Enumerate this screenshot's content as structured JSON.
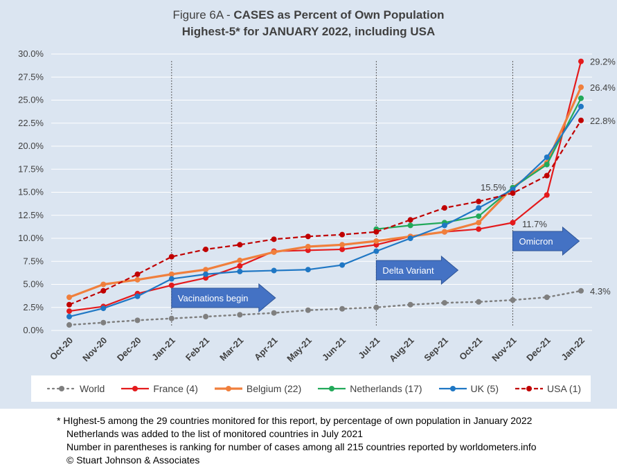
{
  "chart_data": {
    "type": "line",
    "title_prefix": "Figure 6A - ",
    "title_bold": "CASES as Percent of Own Population",
    "subtitle": "Highest-5* for JANUARY 2022, including USA",
    "categories": [
      "Oct-20",
      "Nov-20",
      "Dec-20",
      "Jan-21",
      "Feb-21",
      "Mar-21",
      "Apr-21",
      "May-21",
      "Jun-21",
      "Jul-21",
      "Aug-21",
      "Sep-21",
      "Oct-21",
      "Nov-21",
      "Dec-21",
      "Jan-22"
    ],
    "y_ticks": [
      "0.0%",
      "2.5%",
      "5.0%",
      "7.5%",
      "10.0%",
      "12.5%",
      "15.0%",
      "17.5%",
      "20.0%",
      "22.5%",
      "25.0%",
      "27.5%",
      "30.0%"
    ],
    "ylim": [
      0,
      30
    ],
    "grid": "horizontal",
    "legend_position": "bottom",
    "series": [
      {
        "name": "World",
        "color": "#7f7f7f",
        "style": "dotted",
        "values": [
          0.6,
          0.85,
          1.1,
          1.3,
          1.5,
          1.7,
          1.9,
          2.2,
          2.35,
          2.5,
          2.8,
          3.0,
          3.1,
          3.3,
          3.6,
          4.3
        ]
      },
      {
        "name": "France (4)",
        "color": "#e41a1c",
        "style": "solid",
        "values": [
          2.1,
          2.6,
          4.0,
          4.9,
          5.7,
          7.0,
          8.6,
          8.7,
          8.8,
          9.3,
          10.2,
          10.7,
          11.0,
          11.7,
          14.7,
          29.2
        ]
      },
      {
        "name": "Belgium (22)",
        "color": "#f07f3c",
        "style": "solid-thick",
        "values": [
          3.6,
          5.0,
          5.5,
          6.1,
          6.6,
          7.6,
          8.5,
          9.1,
          9.3,
          9.7,
          10.2,
          10.7,
          11.7,
          15.5,
          18.2,
          26.4
        ]
      },
      {
        "name": "Netherlands (17)",
        "color": "#22a95a",
        "style": "solid",
        "values": [
          null,
          null,
          null,
          null,
          null,
          null,
          null,
          null,
          null,
          11.0,
          11.4,
          11.7,
          12.4,
          15.5,
          18.0,
          25.2
        ]
      },
      {
        "name": "UK (5)",
        "color": "#1f77c4",
        "style": "solid",
        "values": [
          1.5,
          2.4,
          3.7,
          5.6,
          6.1,
          6.4,
          6.5,
          6.6,
          7.1,
          8.6,
          10.0,
          11.4,
          13.3,
          15.3,
          18.8,
          24.3
        ]
      },
      {
        "name": "USA (1)",
        "color": "#c00000",
        "style": "dashed",
        "values": [
          2.8,
          4.3,
          6.1,
          8.0,
          8.8,
          9.3,
          9.9,
          10.2,
          10.4,
          10.7,
          12.0,
          13.3,
          14.0,
          14.9,
          16.8,
          22.8
        ]
      }
    ],
    "annotations": {
      "france_end": "29.2%",
      "belgium_end": "26.4%",
      "usa_end": "22.8%",
      "world_end": "4.3%",
      "belgium_nov21": "15.5%",
      "france_nov21": "11.7%"
    },
    "event_arrows": [
      {
        "label": "Vacinations begin",
        "at": "Jan-21"
      },
      {
        "label": "Delta Variant",
        "at": "Jul-21"
      },
      {
        "label": "Omicron",
        "at": "Nov-21"
      }
    ]
  },
  "footnotes": [
    "* HIghest-5 among the 29 countries monitored for this report, by percentage of own population in January 2022",
    "Netherlands was added to the list of monitored countries in July 2021",
    "Number in parentheses is ranking for number of cases among all 215 countries reported by worldometers.info",
    "© Stuart Johnson & Associates"
  ]
}
